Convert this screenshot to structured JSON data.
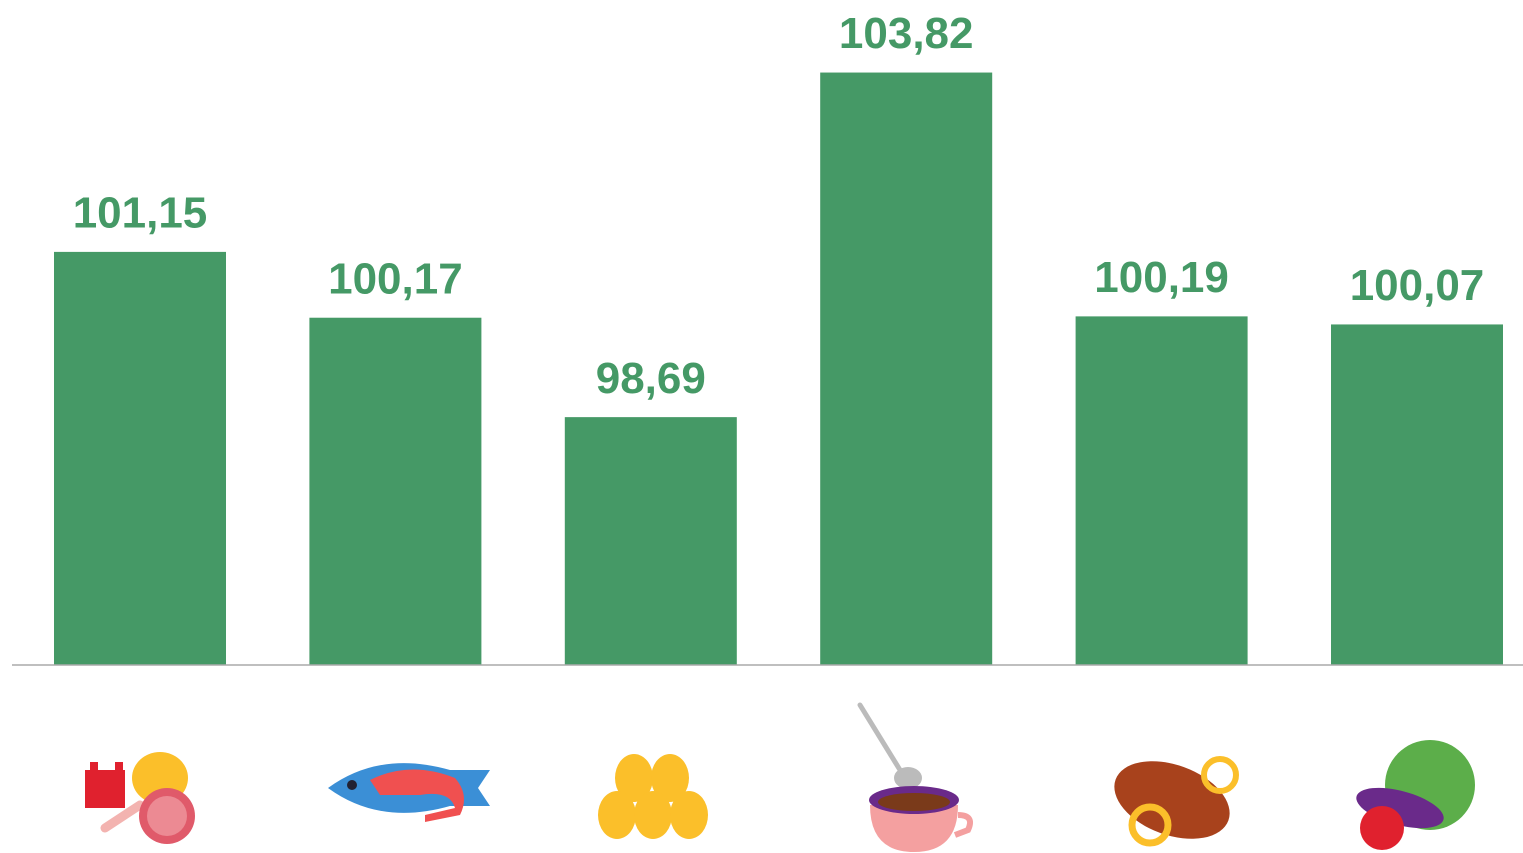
{
  "chart_data": {
    "type": "bar",
    "categories": [
      null,
      null,
      null,
      null,
      null,
      null
    ],
    "values": [
      101.15,
      100.17,
      98.69,
      103.82,
      100.19,
      100.07
    ],
    "value_labels": [
      "101,15",
      "100,17",
      "98,69",
      "103,82",
      "100,19",
      "100,07"
    ],
    "color": "#459966",
    "ylim": [
      95,
      104.9
    ]
  }
}
